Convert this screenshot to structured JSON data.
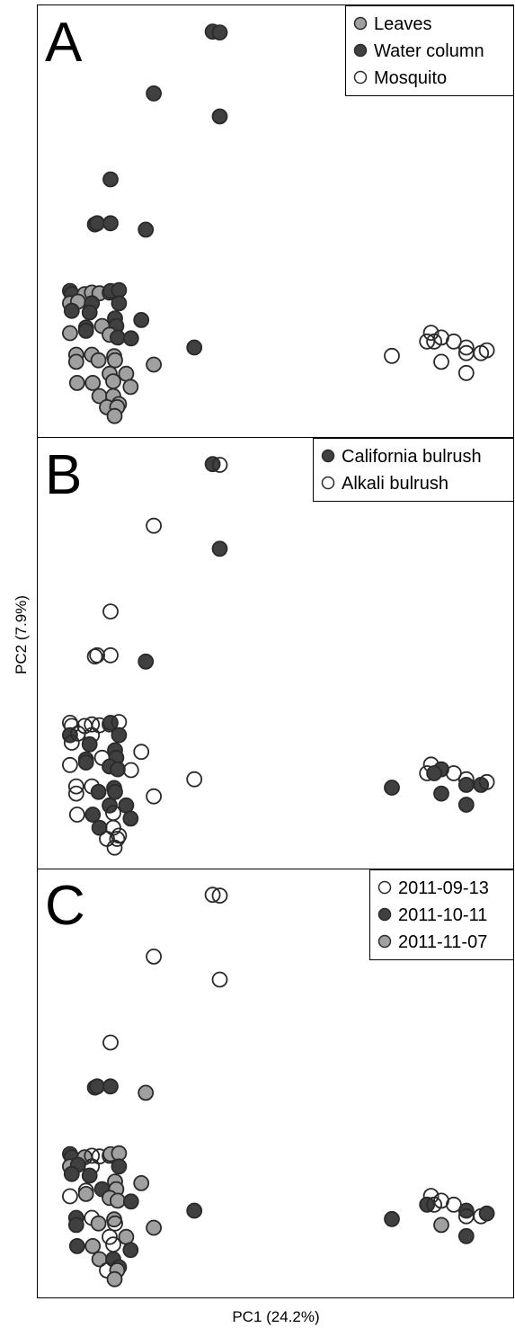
{
  "xlabel": "PC1 (24.2%)",
  "ylabel": "PC2 (7.9%)",
  "colors": {
    "dark": "#404040",
    "grey": "#a0a0a0",
    "white": "#ffffff",
    "edge": "#2a2a2a"
  },
  "chart_data": [
    {
      "type": "scatter",
      "panel": "A",
      "title": "A",
      "legend_position": "top-right",
      "legend": [
        {
          "name": "Leaves",
          "color": "#a0a0a0"
        },
        {
          "name": "Water column",
          "color": "#404040"
        },
        {
          "name": "Mosquito",
          "color": "#ffffff"
        }
      ],
      "xlim": [
        0,
        1
      ],
      "ylim": [
        0,
        1
      ],
      "points": [
        {
          "x": 0.356,
          "y": 0.977,
          "c": "#404040"
        },
        {
          "x": 0.372,
          "y": 0.975,
          "c": "#404040"
        },
        {
          "x": 0.224,
          "y": 0.822,
          "c": "#404040"
        },
        {
          "x": 0.372,
          "y": 0.764,
          "c": "#404040"
        },
        {
          "x": 0.127,
          "y": 0.606,
          "c": "#404040"
        },
        {
          "x": 0.092,
          "y": 0.493,
          "c": "#404040"
        },
        {
          "x": 0.097,
          "y": 0.496,
          "c": "#404040"
        },
        {
          "x": 0.127,
          "y": 0.496,
          "c": "#404040"
        },
        {
          "x": 0.206,
          "y": 0.48,
          "c": "#404040"
        },
        {
          "x": 0.036,
          "y": 0.326,
          "c": "#404040"
        },
        {
          "x": 0.04,
          "y": 0.318,
          "c": "#404040"
        },
        {
          "x": 0.069,
          "y": 0.318,
          "c": "#a0a0a0"
        },
        {
          "x": 0.085,
          "y": 0.322,
          "c": "#a0a0a0"
        },
        {
          "x": 0.102,
          "y": 0.32,
          "c": "#a0a0a0"
        },
        {
          "x": 0.125,
          "y": 0.322,
          "c": "#a0a0a0"
        },
        {
          "x": 0.127,
          "y": 0.326,
          "c": "#404040"
        },
        {
          "x": 0.146,
          "y": 0.328,
          "c": "#404040"
        },
        {
          "x": 0.036,
          "y": 0.295,
          "c": "#a0a0a0"
        },
        {
          "x": 0.054,
          "y": 0.299,
          "c": "#a0a0a0"
        },
        {
          "x": 0.085,
          "y": 0.295,
          "c": "#404040"
        },
        {
          "x": 0.146,
          "y": 0.295,
          "c": "#404040"
        },
        {
          "x": 0.04,
          "y": 0.276,
          "c": "#404040"
        },
        {
          "x": 0.08,
          "y": 0.272,
          "c": "#404040"
        },
        {
          "x": 0.137,
          "y": 0.257,
          "c": "#404040"
        },
        {
          "x": 0.196,
          "y": 0.253,
          "c": "#404040"
        },
        {
          "x": 0.072,
          "y": 0.234,
          "c": "#404040"
        },
        {
          "x": 0.108,
          "y": 0.238,
          "c": "#a0a0a0"
        },
        {
          "x": 0.14,
          "y": 0.238,
          "c": "#404040"
        },
        {
          "x": 0.036,
          "y": 0.22,
          "c": "#a0a0a0"
        },
        {
          "x": 0.072,
          "y": 0.226,
          "c": "#404040"
        },
        {
          "x": 0.125,
          "y": 0.216,
          "c": "#a0a0a0"
        },
        {
          "x": 0.143,
          "y": 0.209,
          "c": "#404040"
        },
        {
          "x": 0.173,
          "y": 0.207,
          "c": "#404040"
        },
        {
          "x": 0.315,
          "y": 0.184,
          "c": "#404040"
        },
        {
          "x": 0.05,
          "y": 0.166,
          "c": "#a0a0a0"
        },
        {
          "x": 0.085,
          "y": 0.166,
          "c": "#a0a0a0"
        },
        {
          "x": 0.135,
          "y": 0.162,
          "c": "#a0a0a0"
        },
        {
          "x": 0.05,
          "y": 0.148,
          "c": "#a0a0a0"
        },
        {
          "x": 0.1,
          "y": 0.152,
          "c": "#a0a0a0"
        },
        {
          "x": 0.137,
          "y": 0.152,
          "c": "#a0a0a0"
        },
        {
          "x": 0.224,
          "y": 0.141,
          "c": "#a0a0a0"
        },
        {
          "x": 0.125,
          "y": 0.118,
          "c": "#a0a0a0"
        },
        {
          "x": 0.162,
          "y": 0.118,
          "c": "#a0a0a0"
        },
        {
          "x": 0.052,
          "y": 0.095,
          "c": "#a0a0a0"
        },
        {
          "x": 0.087,
          "y": 0.095,
          "c": "#a0a0a0"
        },
        {
          "x": 0.133,
          "y": 0.099,
          "c": "#a0a0a0"
        },
        {
          "x": 0.172,
          "y": 0.085,
          "c": "#a0a0a0"
        },
        {
          "x": 0.102,
          "y": 0.062,
          "c": "#a0a0a0"
        },
        {
          "x": 0.133,
          "y": 0.062,
          "c": "#a0a0a0"
        },
        {
          "x": 0.146,
          "y": 0.042,
          "c": "#a0a0a0"
        },
        {
          "x": 0.119,
          "y": 0.034,
          "c": "#a0a0a0"
        },
        {
          "x": 0.142,
          "y": 0.034,
          "c": "#a0a0a0"
        },
        {
          "x": 0.136,
          "y": 0.012,
          "c": "#a0a0a0"
        },
        {
          "x": 0.846,
          "y": 0.221,
          "c": "#ffffff"
        },
        {
          "x": 0.925,
          "y": 0.184,
          "c": "#ffffff"
        },
        {
          "x": 0.869,
          "y": 0.209,
          "c": "#ffffff"
        },
        {
          "x": 0.837,
          "y": 0.199,
          "c": "#ffffff"
        },
        {
          "x": 0.853,
          "y": 0.199,
          "c": "#ffffff"
        },
        {
          "x": 0.897,
          "y": 0.199,
          "c": "#ffffff"
        },
        {
          "x": 0.758,
          "y": 0.163,
          "c": "#ffffff"
        },
        {
          "x": 0.869,
          "y": 0.148,
          "c": "#ffffff"
        },
        {
          "x": 0.925,
          "y": 0.17,
          "c": "#ffffff"
        },
        {
          "x": 0.958,
          "y": 0.17,
          "c": "#ffffff"
        },
        {
          "x": 0.971,
          "y": 0.177,
          "c": "#ffffff"
        },
        {
          "x": 0.925,
          "y": 0.12,
          "c": "#ffffff"
        }
      ]
    },
    {
      "type": "scatter",
      "panel": "B",
      "title": "B",
      "legend_position": "top-right",
      "legend": [
        {
          "name": "California bulrush",
          "color": "#404040"
        },
        {
          "name": "Alkali bulrush",
          "color": "#ffffff"
        }
      ],
      "xlim": [
        0,
        1
      ],
      "ylim": [
        0,
        1
      ],
      "points": [
        {
          "x": 0.356,
          "y": 0.977,
          "c": "#404040"
        },
        {
          "x": 0.372,
          "y": 0.975,
          "c": "#ffffff"
        },
        {
          "x": 0.224,
          "y": 0.822,
          "c": "#ffffff"
        },
        {
          "x": 0.372,
          "y": 0.764,
          "c": "#404040"
        },
        {
          "x": 0.127,
          "y": 0.606,
          "c": "#ffffff"
        },
        {
          "x": 0.092,
          "y": 0.493,
          "c": "#ffffff"
        },
        {
          "x": 0.097,
          "y": 0.496,
          "c": "#ffffff"
        },
        {
          "x": 0.127,
          "y": 0.496,
          "c": "#ffffff"
        },
        {
          "x": 0.206,
          "y": 0.48,
          "c": "#404040"
        },
        {
          "x": 0.036,
          "y": 0.326,
          "c": "#ffffff"
        },
        {
          "x": 0.04,
          "y": 0.318,
          "c": "#ffffff"
        },
        {
          "x": 0.069,
          "y": 0.318,
          "c": "#ffffff"
        },
        {
          "x": 0.085,
          "y": 0.322,
          "c": "#ffffff"
        },
        {
          "x": 0.102,
          "y": 0.32,
          "c": "#ffffff"
        },
        {
          "x": 0.125,
          "y": 0.322,
          "c": "#ffffff"
        },
        {
          "x": 0.127,
          "y": 0.326,
          "c": "#404040"
        },
        {
          "x": 0.146,
          "y": 0.328,
          "c": "#ffffff"
        },
        {
          "x": 0.036,
          "y": 0.295,
          "c": "#404040"
        },
        {
          "x": 0.054,
          "y": 0.299,
          "c": "#ffffff"
        },
        {
          "x": 0.085,
          "y": 0.295,
          "c": "#ffffff"
        },
        {
          "x": 0.146,
          "y": 0.295,
          "c": "#404040"
        },
        {
          "x": 0.04,
          "y": 0.276,
          "c": "#ffffff"
        },
        {
          "x": 0.08,
          "y": 0.272,
          "c": "#404040"
        },
        {
          "x": 0.137,
          "y": 0.257,
          "c": "#404040"
        },
        {
          "x": 0.196,
          "y": 0.253,
          "c": "#ffffff"
        },
        {
          "x": 0.072,
          "y": 0.234,
          "c": "#404040"
        },
        {
          "x": 0.108,
          "y": 0.238,
          "c": "#ffffff"
        },
        {
          "x": 0.14,
          "y": 0.238,
          "c": "#404040"
        },
        {
          "x": 0.036,
          "y": 0.22,
          "c": "#ffffff"
        },
        {
          "x": 0.072,
          "y": 0.226,
          "c": "#404040"
        },
        {
          "x": 0.125,
          "y": 0.216,
          "c": "#404040"
        },
        {
          "x": 0.143,
          "y": 0.209,
          "c": "#404040"
        },
        {
          "x": 0.173,
          "y": 0.207,
          "c": "#ffffff"
        },
        {
          "x": 0.315,
          "y": 0.184,
          "c": "#ffffff"
        },
        {
          "x": 0.05,
          "y": 0.166,
          "c": "#ffffff"
        },
        {
          "x": 0.085,
          "y": 0.166,
          "c": "#ffffff"
        },
        {
          "x": 0.135,
          "y": 0.162,
          "c": "#404040"
        },
        {
          "x": 0.05,
          "y": 0.148,
          "c": "#ffffff"
        },
        {
          "x": 0.1,
          "y": 0.152,
          "c": "#404040"
        },
        {
          "x": 0.137,
          "y": 0.152,
          "c": "#404040"
        },
        {
          "x": 0.224,
          "y": 0.141,
          "c": "#ffffff"
        },
        {
          "x": 0.125,
          "y": 0.118,
          "c": "#404040"
        },
        {
          "x": 0.162,
          "y": 0.118,
          "c": "#404040"
        },
        {
          "x": 0.052,
          "y": 0.095,
          "c": "#ffffff"
        },
        {
          "x": 0.087,
          "y": 0.095,
          "c": "#404040"
        },
        {
          "x": 0.133,
          "y": 0.099,
          "c": "#ffffff"
        },
        {
          "x": 0.172,
          "y": 0.085,
          "c": "#404040"
        },
        {
          "x": 0.102,
          "y": 0.062,
          "c": "#404040"
        },
        {
          "x": 0.133,
          "y": 0.062,
          "c": "#ffffff"
        },
        {
          "x": 0.146,
          "y": 0.042,
          "c": "#ffffff"
        },
        {
          "x": 0.119,
          "y": 0.034,
          "c": "#ffffff"
        },
        {
          "x": 0.142,
          "y": 0.034,
          "c": "#ffffff"
        },
        {
          "x": 0.136,
          "y": 0.012,
          "c": "#ffffff"
        },
        {
          "x": 0.846,
          "y": 0.221,
          "c": "#ffffff"
        },
        {
          "x": 0.925,
          "y": 0.184,
          "c": "#ffffff"
        },
        {
          "x": 0.869,
          "y": 0.209,
          "c": "#404040"
        },
        {
          "x": 0.837,
          "y": 0.199,
          "c": "#ffffff"
        },
        {
          "x": 0.853,
          "y": 0.199,
          "c": "#404040"
        },
        {
          "x": 0.897,
          "y": 0.199,
          "c": "#ffffff"
        },
        {
          "x": 0.758,
          "y": 0.163,
          "c": "#404040"
        },
        {
          "x": 0.869,
          "y": 0.148,
          "c": "#404040"
        },
        {
          "x": 0.925,
          "y": 0.17,
          "c": "#404040"
        },
        {
          "x": 0.958,
          "y": 0.17,
          "c": "#404040"
        },
        {
          "x": 0.971,
          "y": 0.177,
          "c": "#ffffff"
        },
        {
          "x": 0.925,
          "y": 0.12,
          "c": "#404040"
        }
      ]
    },
    {
      "type": "scatter",
      "panel": "C",
      "title": "C",
      "legend_position": "top-right",
      "legend": [
        {
          "name": "2011-09-13",
          "color": "#ffffff"
        },
        {
          "name": "2011-10-11",
          "color": "#404040"
        },
        {
          "name": "2011-11-07",
          "color": "#a0a0a0"
        }
      ],
      "xlim": [
        0,
        1
      ],
      "ylim": [
        0,
        1
      ],
      "points": [
        {
          "x": 0.356,
          "y": 0.977,
          "c": "#ffffff"
        },
        {
          "x": 0.372,
          "y": 0.975,
          "c": "#ffffff"
        },
        {
          "x": 0.224,
          "y": 0.822,
          "c": "#ffffff"
        },
        {
          "x": 0.372,
          "y": 0.764,
          "c": "#ffffff"
        },
        {
          "x": 0.127,
          "y": 0.606,
          "c": "#ffffff"
        },
        {
          "x": 0.092,
          "y": 0.493,
          "c": "#404040"
        },
        {
          "x": 0.097,
          "y": 0.496,
          "c": "#404040"
        },
        {
          "x": 0.127,
          "y": 0.496,
          "c": "#404040"
        },
        {
          "x": 0.206,
          "y": 0.48,
          "c": "#a0a0a0"
        },
        {
          "x": 0.036,
          "y": 0.326,
          "c": "#404040"
        },
        {
          "x": 0.04,
          "y": 0.318,
          "c": "#404040"
        },
        {
          "x": 0.069,
          "y": 0.318,
          "c": "#a0a0a0"
        },
        {
          "x": 0.085,
          "y": 0.322,
          "c": "#ffffff"
        },
        {
          "x": 0.102,
          "y": 0.32,
          "c": "#ffffff"
        },
        {
          "x": 0.125,
          "y": 0.322,
          "c": "#ffffff"
        },
        {
          "x": 0.127,
          "y": 0.326,
          "c": "#a0a0a0"
        },
        {
          "x": 0.146,
          "y": 0.328,
          "c": "#a0a0a0"
        },
        {
          "x": 0.036,
          "y": 0.295,
          "c": "#a0a0a0"
        },
        {
          "x": 0.054,
          "y": 0.299,
          "c": "#404040"
        },
        {
          "x": 0.085,
          "y": 0.295,
          "c": "#ffffff"
        },
        {
          "x": 0.146,
          "y": 0.295,
          "c": "#404040"
        },
        {
          "x": 0.04,
          "y": 0.276,
          "c": "#404040"
        },
        {
          "x": 0.08,
          "y": 0.272,
          "c": "#404040"
        },
        {
          "x": 0.137,
          "y": 0.257,
          "c": "#a0a0a0"
        },
        {
          "x": 0.196,
          "y": 0.253,
          "c": "#a0a0a0"
        },
        {
          "x": 0.072,
          "y": 0.234,
          "c": "#ffffff"
        },
        {
          "x": 0.108,
          "y": 0.238,
          "c": "#404040"
        },
        {
          "x": 0.14,
          "y": 0.238,
          "c": "#a0a0a0"
        },
        {
          "x": 0.036,
          "y": 0.22,
          "c": "#ffffff"
        },
        {
          "x": 0.072,
          "y": 0.226,
          "c": "#a0a0a0"
        },
        {
          "x": 0.125,
          "y": 0.216,
          "c": "#a0a0a0"
        },
        {
          "x": 0.143,
          "y": 0.209,
          "c": "#a0a0a0"
        },
        {
          "x": 0.173,
          "y": 0.207,
          "c": "#404040"
        },
        {
          "x": 0.315,
          "y": 0.184,
          "c": "#404040"
        },
        {
          "x": 0.05,
          "y": 0.166,
          "c": "#404040"
        },
        {
          "x": 0.085,
          "y": 0.166,
          "c": "#ffffff"
        },
        {
          "x": 0.135,
          "y": 0.162,
          "c": "#a0a0a0"
        },
        {
          "x": 0.05,
          "y": 0.148,
          "c": "#404040"
        },
        {
          "x": 0.1,
          "y": 0.152,
          "c": "#a0a0a0"
        },
        {
          "x": 0.137,
          "y": 0.152,
          "c": "#ffffff"
        },
        {
          "x": 0.224,
          "y": 0.141,
          "c": "#a0a0a0"
        },
        {
          "x": 0.125,
          "y": 0.118,
          "c": "#ffffff"
        },
        {
          "x": 0.162,
          "y": 0.118,
          "c": "#a0a0a0"
        },
        {
          "x": 0.052,
          "y": 0.095,
          "c": "#404040"
        },
        {
          "x": 0.087,
          "y": 0.095,
          "c": "#a0a0a0"
        },
        {
          "x": 0.133,
          "y": 0.099,
          "c": "#ffffff"
        },
        {
          "x": 0.172,
          "y": 0.085,
          "c": "#404040"
        },
        {
          "x": 0.102,
          "y": 0.062,
          "c": "#a0a0a0"
        },
        {
          "x": 0.133,
          "y": 0.062,
          "c": "#404040"
        },
        {
          "x": 0.146,
          "y": 0.042,
          "c": "#404040"
        },
        {
          "x": 0.119,
          "y": 0.034,
          "c": "#ffffff"
        },
        {
          "x": 0.142,
          "y": 0.034,
          "c": "#a0a0a0"
        },
        {
          "x": 0.136,
          "y": 0.012,
          "c": "#a0a0a0"
        },
        {
          "x": 0.846,
          "y": 0.221,
          "c": "#ffffff"
        },
        {
          "x": 0.925,
          "y": 0.184,
          "c": "#404040"
        },
        {
          "x": 0.869,
          "y": 0.209,
          "c": "#ffffff"
        },
        {
          "x": 0.837,
          "y": 0.199,
          "c": "#404040"
        },
        {
          "x": 0.853,
          "y": 0.199,
          "c": "#ffffff"
        },
        {
          "x": 0.897,
          "y": 0.199,
          "c": "#ffffff"
        },
        {
          "x": 0.758,
          "y": 0.163,
          "c": "#404040"
        },
        {
          "x": 0.869,
          "y": 0.148,
          "c": "#a0a0a0"
        },
        {
          "x": 0.925,
          "y": 0.17,
          "c": "#ffffff"
        },
        {
          "x": 0.958,
          "y": 0.17,
          "c": "#ffffff"
        },
        {
          "x": 0.971,
          "y": 0.177,
          "c": "#404040"
        },
        {
          "x": 0.925,
          "y": 0.12,
          "c": "#404040"
        }
      ]
    }
  ]
}
